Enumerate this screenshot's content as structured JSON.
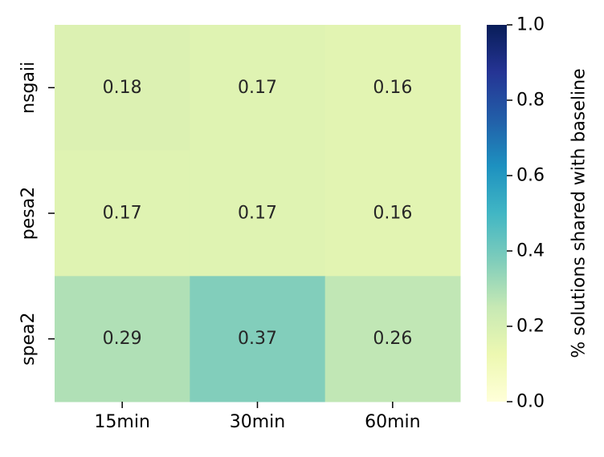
{
  "chart_data": {
    "type": "heatmap",
    "title": "",
    "xlabel": "",
    "ylabel": "",
    "x_categories": [
      "15min",
      "30min",
      "60min"
    ],
    "y_categories": [
      "nsgaii",
      "pesa2",
      "spea2"
    ],
    "values": [
      [
        0.18,
        0.17,
        0.16
      ],
      [
        0.17,
        0.17,
        0.16
      ],
      [
        0.29,
        0.37,
        0.26
      ]
    ],
    "cell_labels": [
      [
        "0.18",
        "0.17",
        "0.16"
      ],
      [
        "0.17",
        "0.17",
        "0.16"
      ],
      [
        "0.29",
        "0.37",
        "0.26"
      ]
    ],
    "colorbar": {
      "label": "% solutions shared with baseline",
      "range": [
        0.0,
        1.0
      ],
      "ticks": [
        "0.0",
        "0.2",
        "0.4",
        "0.6",
        "0.8",
        "1.0"
      ],
      "colormap": "YlGnBu",
      "colors": [
        "#ffffd9",
        "#edf8b1",
        "#c7e9b4",
        "#7fcdbb",
        "#41b6c4",
        "#1d91c0",
        "#225ea8",
        "#253494",
        "#081d58"
      ]
    }
  }
}
